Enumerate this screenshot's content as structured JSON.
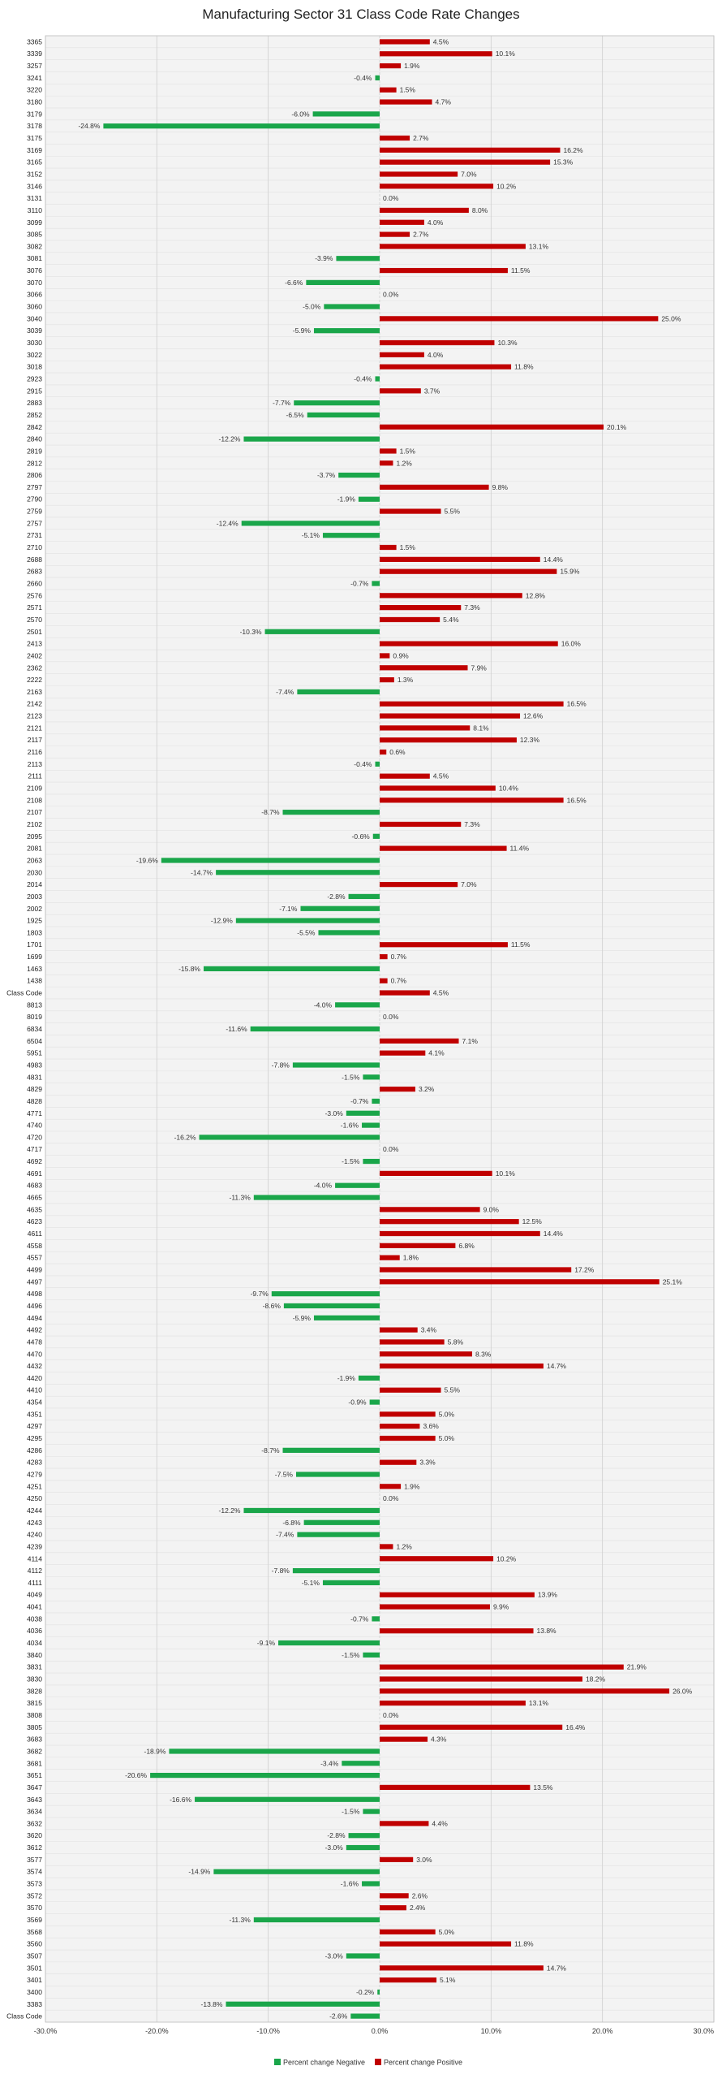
{
  "colors": {
    "negative": "#1aa64a",
    "positive": "#c00000",
    "grid": "#cfcfcf",
    "plot_bg": "#f3f3f3"
  },
  "chart_data": {
    "type": "bar",
    "orientation": "horizontal",
    "title": "Manufacturing Sector 31 Class Code Rate Changes",
    "xlabel": "",
    "ylabel": "",
    "xlim": [
      -30,
      30
    ],
    "x_ticks": [
      "-30.0%",
      "-20.0%",
      "-10.0%",
      "0.0%",
      "10.0%",
      "20.0%",
      "30.0%"
    ],
    "x_tick_values": [
      -30,
      -20,
      -10,
      0,
      10,
      20,
      30
    ],
    "grid": true,
    "legend_position": "bottom-center",
    "legend": [
      "Percent change Negative",
      "Percent change Positive"
    ],
    "categories": [
      "3365",
      "3339",
      "3257",
      "3241",
      "3220",
      "3180",
      "3179",
      "3178",
      "3175",
      "3169",
      "3165",
      "3152",
      "3146",
      "3131",
      "3110",
      "3099",
      "3085",
      "3082",
      "3081",
      "3076",
      "3070",
      "3066",
      "3060",
      "3040",
      "3039",
      "3030",
      "3022",
      "3018",
      "2923",
      "2915",
      "2883",
      "2852",
      "2842",
      "2840",
      "2819",
      "2812",
      "2806",
      "2797",
      "2790",
      "2759",
      "2757",
      "2731",
      "2710",
      "2688",
      "2683",
      "2660",
      "2576",
      "2571",
      "2570",
      "2501",
      "2413",
      "2402",
      "2362",
      "2222",
      "2163",
      "2142",
      "2123",
      "2121",
      "2117",
      "2116",
      "2113",
      "2111",
      "2109",
      "2108",
      "2107",
      "2102",
      "2095",
      "2081",
      "2063",
      "2030",
      "2014",
      "2003",
      "2002",
      "1925",
      "1803",
      "1701",
      "1699",
      "1463",
      "1438",
      "Class Code",
      "8813",
      "8019",
      "6834",
      "6504",
      "5951",
      "4983",
      "4831",
      "4829",
      "4828",
      "4771",
      "4740",
      "4720",
      "4717",
      "4692",
      "4691",
      "4683",
      "4665",
      "4635",
      "4623",
      "4611",
      "4558",
      "4557",
      "4499",
      "4497",
      "4498",
      "4496",
      "4494",
      "4492",
      "4478",
      "4470",
      "4432",
      "4420",
      "4410",
      "4354",
      "4351",
      "4297",
      "4295",
      "4286",
      "4283",
      "4279",
      "4251",
      "4250",
      "4244",
      "4243",
      "4240",
      "4239",
      "4114",
      "4112",
      "4111",
      "4049",
      "4041",
      "4038",
      "4036",
      "4034",
      "3840",
      "3831",
      "3830",
      "3828",
      "3815",
      "3808",
      "3805",
      "3683",
      "3682",
      "3681",
      "3651",
      "3647",
      "3643",
      "3634",
      "3632",
      "3620",
      "3612",
      "3577",
      "3574",
      "3573",
      "3572",
      "3570",
      "3569",
      "3568",
      "3560",
      "3507",
      "3501",
      "3401",
      "3400",
      "3383",
      "Class Code"
    ],
    "values": [
      4.5,
      10.1,
      1.9,
      -0.4,
      1.5,
      4.7,
      -6.0,
      -24.8,
      2.7,
      16.2,
      15.3,
      7.0,
      10.2,
      0.0,
      8.0,
      4.0,
      2.7,
      13.1,
      -3.9,
      11.5,
      -6.6,
      0.0,
      -5.0,
      25.0,
      -5.9,
      10.3,
      4.0,
      11.8,
      -0.4,
      3.7,
      -7.7,
      -6.5,
      20.1,
      -12.2,
      1.5,
      1.2,
      -3.7,
      9.8,
      -1.9,
      5.5,
      -12.4,
      -5.1,
      1.5,
      14.4,
      15.9,
      -0.7,
      12.8,
      7.3,
      5.4,
      -10.3,
      16.0,
      0.9,
      7.9,
      1.3,
      -7.4,
      16.5,
      12.6,
      8.1,
      12.3,
      0.6,
      -0.4,
      4.5,
      10.4,
      16.5,
      -8.7,
      7.3,
      -0.6,
      11.4,
      -19.6,
      -14.7,
      7.0,
      -2.8,
      -7.1,
      -12.9,
      -5.5,
      11.5,
      0.7,
      -15.8,
      0.7,
      4.5,
      -4.0,
      0.0,
      -11.6,
      7.1,
      4.1,
      -7.8,
      -1.5,
      3.2,
      -0.7,
      -3.0,
      -1.6,
      -16.2,
      0.0,
      -1.5,
      10.1,
      -4.0,
      -11.3,
      9.0,
      12.5,
      14.4,
      6.8,
      1.8,
      17.2,
      25.1,
      -9.7,
      -8.6,
      -5.9,
      3.4,
      5.8,
      8.3,
      14.7,
      -1.9,
      5.5,
      -0.9,
      5.0,
      3.6,
      5.0,
      -8.7,
      3.3,
      -7.5,
      1.9,
      0.0,
      -12.2,
      -6.8,
      -7.4,
      1.2,
      10.2,
      -7.8,
      -5.1,
      13.9,
      9.9,
      -0.7,
      13.8,
      -9.1,
      -1.5,
      21.9,
      18.2,
      26.0,
      13.1,
      0.0,
      16.4,
      4.3,
      -18.9,
      -3.4,
      -20.6,
      13.5,
      -16.6,
      -1.5,
      4.4,
      -2.8,
      -3.0,
      3.0,
      -14.9,
      -1.6,
      2.6,
      2.4,
      -11.3,
      5.0,
      11.8,
      -3.0,
      14.7,
      5.1,
      -0.2,
      -13.8,
      -2.6
    ],
    "value_labels": [
      "4.5%",
      "10.1%",
      "1.9%",
      "-0.4%",
      "1.5%",
      "4.7%",
      "-6.0%",
      "-24.8%",
      "2.7%",
      "16.2%",
      "15.3%",
      "7.0%",
      "10.2%",
      "0.0%",
      "8.0%",
      "4.0%",
      "2.7%",
      "13.1%",
      "-3.9%",
      "11.5%",
      "-6.6%",
      "0.0%",
      "-5.0%",
      "25.0%",
      "-5.9%",
      "10.3%",
      "4.0%",
      "11.8%",
      "-0.4%",
      "3.7%",
      "-7.7%",
      "-6.5%",
      "20.1%",
      "-12.2%",
      "1.5%",
      "1.2%",
      "-3.7%",
      "9.8%",
      "-1.9%",
      "5.5%",
      "-12.4%",
      "-5.1%",
      "1.5%",
      "14.4%",
      "15.9%",
      "-0.7%",
      "12.8%",
      "7.3%",
      "5.4%",
      "-10.3%",
      "16.0%",
      "0.9%",
      "7.9%",
      "1.3%",
      "-7.4%",
      "16.5%",
      "12.6%",
      "8.1%",
      "12.3%",
      "0.6%",
      "-0.4%",
      "4.5%",
      "10.4%",
      "16.5%",
      "-8.7%",
      "7.3%",
      "-0.6%",
      "11.4%",
      "-19.6%",
      "-14.7%",
      "7.0%",
      "-2.8%",
      "-7.1%",
      "-12.9%",
      "-5.5%",
      "11.5%",
      "0.7%",
      "-15.8%",
      "0.7%",
      "4.5%",
      "-4.0%",
      "0.0%",
      "-11.6%",
      "7.1%",
      "4.1%",
      "-7.8%",
      "-1.5%",
      "3.2%",
      "-0.7%",
      "-3.0%",
      "-1.6%",
      "-16.2%",
      "0.0%",
      "-1.5%",
      "10.1%",
      "-4.0%",
      "-11.3%",
      "9.0%",
      "12.5%",
      "14.4%",
      "6.8%",
      "1.8%",
      "17.2%",
      "25.1%",
      "-9.7%",
      "-8.6%",
      "-5.9%",
      "3.4%",
      "5.8%",
      "8.3%",
      "14.7%",
      "-1.9%",
      "5.5%",
      "-0.9%",
      "5.0%",
      "3.6%",
      "5.0%",
      "-8.7%",
      "3.3%",
      "-7.5%",
      "1.9%",
      "0.0%",
      "-12.2%",
      "-6.8%",
      "-7.4%",
      "1.2%",
      "10.2%",
      "-7.8%",
      "-5.1%",
      "13.9%",
      "9.9%",
      "-0.7%",
      "13.8%",
      "-9.1%",
      "-1.5%",
      "21.9%",
      "18.2%",
      "26.0%",
      "13.1%",
      "0.0%",
      "16.4%",
      "4.3%",
      "-18.9%",
      "-3.4%",
      "-20.6%",
      "13.5%",
      "-16.6%",
      "-1.5%",
      "4.4%",
      "-2.8%",
      "-3.0%",
      "3.0%",
      "-14.9%",
      "-1.6%",
      "2.6%",
      "2.4%",
      "-11.3%",
      "5.0%",
      "11.8%",
      "-3.0%",
      "14.7%",
      "5.1%",
      "-0.2%",
      "-13.8%",
      "-2.6%"
    ]
  }
}
